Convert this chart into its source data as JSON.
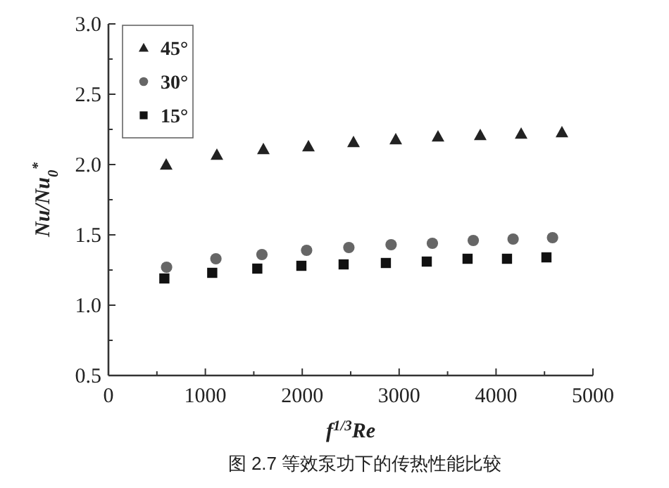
{
  "chart_data": {
    "type": "scatter",
    "xlabel": "f$^{1/3}$Re",
    "ylabel": "Nu/Nu$_{0}$$^{*}$",
    "annotations": [
      "图 2.7 等效泵功下的传热性能比较"
    ],
    "xlim": [
      0,
      5000
    ],
    "ylim": [
      0.5,
      3.0
    ],
    "xticks": [
      0,
      {
        "value": 500,
        "label": null
      },
      1000,
      {
        "value": 1500,
        "label": null
      },
      2000,
      {
        "value": 2500,
        "label": null
      },
      3000,
      {
        "value": 3500,
        "label": null
      },
      4000,
      {
        "value": 4500,
        "label": null
      },
      5000
    ],
    "yticks": [
      {
        "value": 0.5,
        "label": "0.5"
      },
      {
        "value": 0.75,
        "label": null
      },
      {
        "value": 1.0,
        "label": "1.0"
      },
      {
        "value": 1.25,
        "label": null
      },
      {
        "value": 1.5,
        "label": "1.5"
      },
      {
        "value": 1.75,
        "label": null
      },
      {
        "value": 2.0,
        "label": "2.0"
      },
      {
        "value": 2.25,
        "label": null
      },
      {
        "value": 2.5,
        "label": "2.5"
      },
      {
        "value": 2.75,
        "label": null
      },
      {
        "value": 3.0,
        "label": "3.0"
      }
    ],
    "grid": false,
    "legend": "top left",
    "series": [
      {
        "name": "45°",
        "color": "#222222",
        "marker": "triangle",
        "x": [
          596,
          1119,
          1599,
          2064,
          2529,
          2965,
          3401,
          3837,
          4259,
          4680
        ],
        "values": [
          2.0,
          2.07,
          2.11,
          2.13,
          2.16,
          2.18,
          2.2,
          2.21,
          2.22,
          2.23
        ]
      },
      {
        "name": "30°",
        "color": "#666666",
        "marker": "circle",
        "x": [
          600,
          1109,
          1584,
          2045,
          2481,
          2917,
          3343,
          3765,
          4176,
          4583
        ],
        "values": [
          1.27,
          1.33,
          1.36,
          1.39,
          1.41,
          1.43,
          1.44,
          1.46,
          1.47,
          1.48
        ]
      },
      {
        "name": "15°",
        "color": "#111111",
        "marker": "square",
        "x": [
          577,
          1071,
          1536,
          1991,
          2427,
          2863,
          3285,
          3706,
          4113,
          4520
        ],
        "values": [
          1.19,
          1.23,
          1.26,
          1.28,
          1.29,
          1.3,
          1.31,
          1.33,
          1.33,
          1.34
        ]
      }
    ]
  }
}
